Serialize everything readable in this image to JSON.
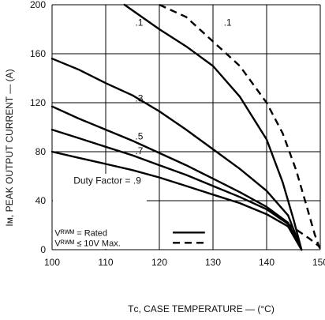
{
  "chart_data": {
    "type": "line",
    "xlabel": "Tᴄ, CASE TEMPERATURE — (°C)",
    "ylabel": "Iᴍ, PEAK OUTPUT CURRENT — (A)",
    "xlim": [
      100,
      150
    ],
    "ylim": [
      0,
      200
    ],
    "x_ticks": [
      "100",
      "110",
      "120",
      "130",
      "140",
      "150"
    ],
    "y_ticks": [
      "0",
      "40",
      "80",
      "120",
      "160",
      "200"
    ],
    "grid": true,
    "series": [
      {
        "name": ".1",
        "style": "solid",
        "points": [
          [
            113.5,
            200
          ],
          [
            120,
            180
          ],
          [
            125,
            166
          ],
          [
            130,
            150
          ],
          [
            135,
            125
          ],
          [
            140,
            90
          ],
          [
            143,
            55
          ],
          [
            145,
            25
          ],
          [
            146.5,
            0
          ]
        ]
      },
      {
        "name": ".3",
        "style": "solid",
        "points": [
          [
            100,
            156
          ],
          [
            105,
            147
          ],
          [
            110,
            136
          ],
          [
            115,
            126
          ],
          [
            120,
            113
          ],
          [
            125,
            98
          ],
          [
            130,
            82
          ],
          [
            135,
            66
          ],
          [
            140,
            48
          ],
          [
            144,
            28
          ],
          [
            146.5,
            0
          ]
        ]
      },
      {
        "name": ".5",
        "style": "solid",
        "points": [
          [
            100,
            117
          ],
          [
            105,
            107
          ],
          [
            110,
            98
          ],
          [
            115,
            89
          ],
          [
            120,
            79
          ],
          [
            125,
            69
          ],
          [
            130,
            58
          ],
          [
            135,
            47
          ],
          [
            140,
            35
          ],
          [
            144,
            22
          ],
          [
            146.5,
            0
          ]
        ]
      },
      {
        "name": ".7",
        "style": "solid",
        "points": [
          [
            100,
            98
          ],
          [
            105,
            91
          ],
          [
            110,
            84
          ],
          [
            115,
            77
          ],
          [
            120,
            69
          ],
          [
            125,
            61
          ],
          [
            130,
            52
          ],
          [
            135,
            43
          ],
          [
            140,
            33
          ],
          [
            144,
            21
          ],
          [
            146.5,
            0
          ]
        ]
      },
      {
        "name": ".9",
        "style": "solid",
        "points": [
          [
            100,
            80
          ],
          [
            105,
            75
          ],
          [
            110,
            70
          ],
          [
            115,
            65
          ],
          [
            120,
            59
          ],
          [
            125,
            52
          ],
          [
            130,
            45
          ],
          [
            135,
            38
          ],
          [
            140,
            29
          ],
          [
            144,
            19
          ],
          [
            146.5,
            0
          ]
        ]
      },
      {
        "name": ".1",
        "style": "dashed",
        "points": [
          [
            120,
            200
          ],
          [
            125,
            190
          ],
          [
            130,
            170
          ],
          [
            135,
            150
          ],
          [
            140,
            120
          ],
          [
            143,
            95
          ],
          [
            145.5,
            65
          ],
          [
            147.5,
            35
          ],
          [
            149,
            12
          ],
          [
            150,
            0
          ]
        ]
      },
      {
        "name": "",
        "style": "dashed",
        "points": [
          [
            142,
            27
          ],
          [
            145,
            18
          ],
          [
            148,
            9
          ],
          [
            150,
            2
          ]
        ]
      }
    ],
    "curve_labels": [
      {
        "text": ".1",
        "x": 115.5,
        "y": 183
      },
      {
        "text": ".1",
        "x": 132,
        "y": 183
      },
      {
        "text": ".3",
        "x": 115.5,
        "y": 121
      },
      {
        "text": ".5",
        "x": 115.5,
        "y": 90
      },
      {
        "text": ".7",
        "x": 115.5,
        "y": 78
      },
      {
        "text": "Duty Factor = .9",
        "x": 104,
        "y": 54
      }
    ],
    "legend": [
      {
        "label": "Vᴿᵂᴹ = Rated",
        "style": "solid"
      },
      {
        "label": "Vᴿᵂᴹ ≤ 10V Max.",
        "style": "dashed"
      }
    ],
    "legend_position": "bottom-left"
  }
}
